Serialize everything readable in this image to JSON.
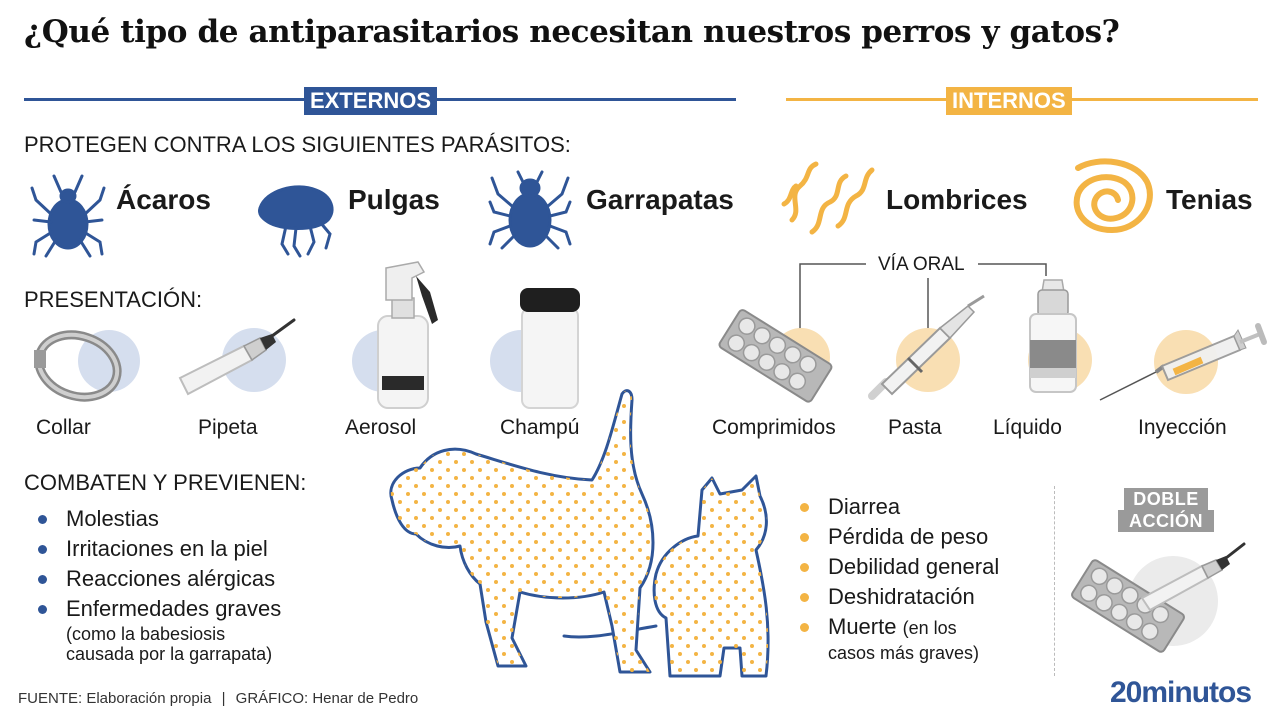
{
  "title": "¿Qué tipo de antiparasitarios necesitan nuestros perros y gatos?",
  "colors": {
    "external": "#2f5597",
    "internal": "#f3b444",
    "external_circle": "#d5deee",
    "internal_circle": "#f9dfb3"
  },
  "externos": {
    "header": "EXTERNOS",
    "protect_label": "PROTEGEN CONTRA LOS SIGUIENTES PARÁSITOS:",
    "parasites": [
      {
        "name": "Ácaros",
        "icon": "mite-icon"
      },
      {
        "name": "Pulgas",
        "icon": "flea-icon"
      },
      {
        "name": "Garrapatas",
        "icon": "tick-icon"
      }
    ],
    "presentation_label": "PRESENTACIÓN:",
    "presentations": [
      {
        "name": "Collar",
        "icon": "collar-icon"
      },
      {
        "name": "Pipeta",
        "icon": "pipette-icon"
      },
      {
        "name": "Aerosol",
        "icon": "spray-bottle-icon"
      },
      {
        "name": "Champú",
        "icon": "shampoo-bottle-icon"
      }
    ],
    "combat_label": "COMBATEN Y PREVIENEN:",
    "effects": [
      {
        "text": "Molestias"
      },
      {
        "text": "Irritaciones en la piel"
      },
      {
        "text": "Reacciones alérgicas"
      },
      {
        "text": "Enfermedades graves",
        "sub": "(como la babesiosis causada por la garrapata)"
      }
    ]
  },
  "internos": {
    "header": "INTERNOS",
    "parasites": [
      {
        "name": "Lombrices",
        "icon": "roundworm-icon"
      },
      {
        "name": "Tenias",
        "icon": "tapeworm-icon"
      }
    ],
    "oral_label": "VÍA ORAL",
    "presentations": [
      {
        "name": "Comprimidos",
        "icon": "tablets-icon"
      },
      {
        "name": "Pasta",
        "icon": "paste-syringe-icon"
      },
      {
        "name": "Líquido",
        "icon": "liquid-bottle-icon"
      },
      {
        "name": "Inyección",
        "icon": "injection-syringe-icon"
      }
    ],
    "effects": [
      {
        "text": "Diarrea"
      },
      {
        "text": "Pérdida de peso"
      },
      {
        "text": "Debilidad general"
      },
      {
        "text": "Deshidratación"
      },
      {
        "text": "Muerte",
        "sub_inline": "(en los",
        "sub": "casos más graves)"
      }
    ],
    "double_action": [
      "DOBLE",
      "ACCIÓN"
    ]
  },
  "footer": {
    "source": "FUENTE: Elaboración propia",
    "separator": "|",
    "graphic": "GRÁFICO: Henar de Pedro",
    "brand": "20minutos"
  }
}
